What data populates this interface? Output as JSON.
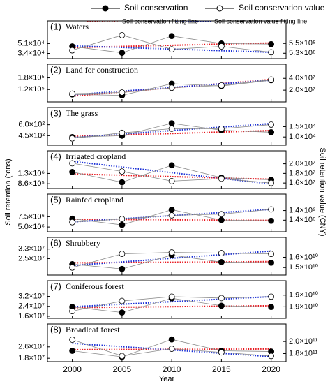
{
  "axes": {
    "ylabel": "Soil retention (tons)",
    "y2label": "Soil retention value (CNY)",
    "xlabel": "Year"
  },
  "chart_data": [
    {
      "type": "line",
      "number": "(1)",
      "title": "Waters",
      "x": [
        2000,
        2005,
        2010,
        2015,
        2020
      ],
      "xlim": [
        1997.5,
        2021.5
      ],
      "xticks": [
        2000,
        2005,
        2010,
        2015,
        2020
      ],
      "ylim": [
        25000,
        90000
      ],
      "yticks": [
        {
          "value": 34000,
          "label": "3.4×10⁴"
        },
        {
          "value": 51000,
          "label": "5.1×10⁴"
        }
      ],
      "y2lim": [
        519000000,
        596000000
      ],
      "y2ticks": [
        {
          "value": 530000000,
          "label": "5.3×10⁸"
        },
        {
          "value": 550000000,
          "label": "5.5×10⁸"
        }
      ],
      "series": [
        {
          "name": "Soil conservation",
          "color": "#000000",
          "marker": "filled",
          "line": "solid",
          "values": [
            46000,
            35000,
            64000,
            51000,
            50000
          ]
        },
        {
          "name": "Soil conservation value",
          "color": "#000000",
          "marker": "open",
          "line": "solid",
          "axis": "y2",
          "values": [
            536000000,
            567000000,
            538000000,
            544000000,
            532000000
          ]
        },
        {
          "name": "Soil conservation fitting line",
          "color": "#e8141b",
          "marker": "none",
          "line": "dotted",
          "values": [
            44000,
            46000,
            48000,
            50000,
            52000
          ]
        },
        {
          "name": "Soil conservation value fitting line",
          "color": "#1a2fd6",
          "marker": "none",
          "line": "dotted",
          "axis": "y2",
          "values": [
            545000000,
            541750000,
            538500000,
            535250000,
            532000000
          ]
        }
      ]
    },
    {
      "type": "line",
      "number": "(2)",
      "title": "Land for construction",
      "x": [
        2000,
        2005,
        2010,
        2015,
        2020
      ],
      "xlim": [
        1997.5,
        2021.5
      ],
      "xticks": [
        2000,
        2005,
        2010,
        2015,
        2020
      ],
      "ylim": [
        56500,
        250000
      ],
      "yticks": [
        {
          "value": 120000,
          "label": "1.2×10⁵"
        },
        {
          "value": 180000,
          "label": "1.8×10⁵"
        }
      ],
      "y2lim": [
        0,
        64000000
      ],
      "y2ticks": [
        {
          "value": 20000000,
          "label": "2.0×10⁷"
        },
        {
          "value": 40000000,
          "label": "4.0×10⁷"
        }
      ],
      "series": [
        {
          "color": "#000000",
          "marker": "filled",
          "line": "solid",
          "values": [
            95000,
            90000,
            150000,
            138000,
            168000
          ]
        },
        {
          "color": "#000000",
          "marker": "open",
          "line": "solid",
          "axis": "y2",
          "values": [
            14000000,
            16000000,
            24000000,
            28000000,
            38000000
          ]
        },
        {
          "color": "#e8141b",
          "marker": "none",
          "line": "dotted",
          "values": [
            86000,
            107500,
            129000,
            150500,
            172000
          ]
        },
        {
          "color": "#1a2fd6",
          "marker": "none",
          "line": "dotted",
          "axis": "y2",
          "values": [
            12000000,
            18250000,
            24500000,
            30750000,
            37000000
          ]
        }
      ]
    },
    {
      "type": "line",
      "number": "(3)",
      "title": "The grass",
      "x": [
        2000,
        2005,
        2010,
        2015,
        2020
      ],
      "xlim": [
        1997.5,
        2021.5
      ],
      "xticks": [
        2000,
        2005,
        2010,
        2015,
        2020
      ],
      "ylim": [
        320,
        835
      ],
      "yticks": [
        {
          "value": 450,
          "label": "4.5×10²"
        },
        {
          "value": 600,
          "label": "6.0×10²"
        }
      ],
      "y2lim": [
        6000,
        24300
      ],
      "y2ticks": [
        {
          "value": 10000,
          "label": "1.0×10⁴"
        },
        {
          "value": 15000,
          "label": "1.5×10⁴"
        }
      ],
      "series": [
        {
          "color": "#000000",
          "marker": "filled",
          "line": "solid",
          "values": [
            431,
            450,
            619,
            525,
            497
          ]
        },
        {
          "color": "#000000",
          "marker": "open",
          "line": "solid",
          "axis": "y2",
          "values": [
            9300,
            12000,
            14000,
            14000,
            16000
          ]
        },
        {
          "color": "#e8141b",
          "marker": "none",
          "line": "dotted",
          "values": [
            440,
            460,
            480,
            500,
            520
          ]
        },
        {
          "color": "#1a2fd6",
          "marker": "none",
          "line": "dotted",
          "axis": "y2",
          "values": [
            9700,
            11400,
            13100,
            14800,
            16500
          ]
        }
      ]
    },
    {
      "type": "line",
      "number": "(4)",
      "title": "Irrigated cropland",
      "x": [
        2000,
        2005,
        2010,
        2015,
        2020
      ],
      "xlim": [
        1997.5,
        2021.5
      ],
      "xticks": [
        2000,
        2005,
        2010,
        2015,
        2020
      ],
      "ylim": [
        655000,
        2270000
      ],
      "yticks": [
        {
          "value": 860000,
          "label": "8.6×10⁵"
        },
        {
          "value": 1300000,
          "label": "1.3×10⁶"
        }
      ],
      "y2lim": [
        14860000,
        22700000
      ],
      "y2ticks": [
        {
          "value": 16000000,
          "label": "1.6×10⁷"
        },
        {
          "value": 18000000,
          "label": "1.8×10⁷"
        },
        {
          "value": 20000000,
          "label": "2.0×10⁷"
        }
      ],
      "series": [
        {
          "color": "#000000",
          "marker": "filled",
          "line": "solid",
          "values": [
            1360000,
            920000,
            1650000,
            1120000,
            1030000
          ]
        },
        {
          "color": "#000000",
          "marker": "open",
          "line": "solid",
          "axis": "y2",
          "values": [
            20100000,
            18400000,
            16400000,
            16900000,
            16000000
          ]
        },
        {
          "color": "#e8141b",
          "marker": "none",
          "line": "dotted",
          "values": [
            1280000,
            1222500,
            1165000,
            1107500,
            1050000
          ]
        },
        {
          "color": "#1a2fd6",
          "marker": "none",
          "line": "dotted",
          "axis": "y2",
          "values": [
            20500000,
            19325000,
            18150000,
            16975000,
            15800000
          ]
        }
      ]
    },
    {
      "type": "line",
      "number": "(5)",
      "title": "Rainfed cropland",
      "x": [
        2000,
        2005,
        2010,
        2015,
        2020
      ],
      "xlim": [
        1997.5,
        2021.5
      ],
      "xticks": [
        2000,
        2005,
        2010,
        2015,
        2020
      ],
      "ylim": [
        3830000,
        13000000
      ],
      "yticks": [
        {
          "value": 5000000,
          "label": "5.0×10⁶"
        },
        {
          "value": 7500000,
          "label": "7.5×10⁶"
        }
      ],
      "y2lim": [
        1263000000,
        1577000000
      ],
      "y2ticks": [
        {
          "value": 1360000000,
          "label": "1.4×10⁹"
        },
        {
          "value": 1440000000,
          "label": "1.4×10⁹"
        }
      ],
      "series": [
        {
          "color": "#000000",
          "marker": "filled",
          "line": "solid",
          "values": [
            7000000,
            5500000,
            9200000,
            6700000,
            6500000
          ]
        },
        {
          "color": "#000000",
          "marker": "open",
          "line": "solid",
          "axis": "y2",
          "values": [
            1343000000,
            1370000000,
            1400000000,
            1410000000,
            1450000000
          ]
        },
        {
          "color": "#e8141b",
          "marker": "none",
          "line": "dotted",
          "values": [
            6900000,
            6825000,
            6750000,
            6675000,
            6600000
          ]
        },
        {
          "color": "#1a2fd6",
          "marker": "none",
          "line": "dotted",
          "axis": "y2",
          "values": [
            1345000000,
            1371250000,
            1397500000,
            1423750000,
            1450000000
          ]
        }
      ]
    },
    {
      "type": "line",
      "number": "(6)",
      "title": "Shrubbery",
      "x": [
        2000,
        2005,
        2010,
        2015,
        2020
      ],
      "xlim": [
        1997.5,
        2021.5
      ],
      "xticks": [
        2000,
        2005,
        2010,
        2015,
        2020
      ],
      "ylim": [
        11300000,
        42700000
      ],
      "yticks": [
        {
          "value": 25000000,
          "label": "2.5×10⁷"
        },
        {
          "value": 33000000,
          "label": "3.3×10⁷"
        }
      ],
      "y2lim": [
        14270000000,
        17930000000
      ],
      "y2ticks": [
        {
          "value": 15000000000,
          "label": "1.5×10¹⁰"
        },
        {
          "value": 16000000000,
          "label": "1.6×10¹⁰"
        }
      ],
      "series": [
        {
          "color": "#000000",
          "marker": "filled",
          "line": "solid",
          "values": [
            20400000,
            16400000,
            27900000,
            22100000,
            21600000
          ]
        },
        {
          "color": "#000000",
          "marker": "open",
          "line": "solid",
          "axis": "y2",
          "values": [
            15000000000,
            16330000000,
            16470000000,
            16400000000,
            16330000000
          ]
        },
        {
          "color": "#e8141b",
          "marker": "none",
          "line": "dotted",
          "values": [
            21500000,
            21750000,
            22000000,
            22250000,
            22500000
          ]
        },
        {
          "color": "#1a2fd6",
          "marker": "none",
          "line": "dotted",
          "axis": "y2",
          "values": [
            15200000000,
            15550000000,
            15900000000,
            16250000000,
            16600000000
          ]
        }
      ]
    },
    {
      "type": "line",
      "number": "(7)",
      "title": "Coniferous forest",
      "x": [
        2000,
        2005,
        2010,
        2015,
        2020
      ],
      "xlim": [
        1997.5,
        2021.5
      ],
      "xticks": [
        2000,
        2005,
        2010,
        2015,
        2020
      ],
      "ylim": [
        14300000,
        44700000
      ],
      "yticks": [
        {
          "value": 16000000,
          "label": "1.6×10⁷"
        },
        {
          "value": 24000000,
          "label": "2.4×10⁷"
        },
        {
          "value": 32000000,
          "label": "3.2×10⁷"
        }
      ],
      "y2lim": [
        17800000000,
        20400000000
      ],
      "y2ticks": [
        {
          "value": 18600000000,
          "label": "1.9×10¹⁰"
        },
        {
          "value": 19400000000,
          "label": "1.9×10¹⁰"
        }
      ],
      "series": [
        {
          "color": "#000000",
          "marker": "filled",
          "line": "solid",
          "values": [
            23500000,
            19000000,
            30500000,
            24500000,
            23500000
          ]
        },
        {
          "color": "#000000",
          "marker": "open",
          "line": "solid",
          "axis": "y2",
          "values": [
            18300000000,
            19000000000,
            19300000000,
            19200000000,
            19300000000
          ]
        },
        {
          "color": "#e8141b",
          "marker": "none",
          "line": "dotted",
          "values": [
            23000000,
            23375000,
            23750000,
            24125000,
            24500000
          ]
        },
        {
          "color": "#1a2fd6",
          "marker": "none",
          "line": "dotted",
          "axis": "y2",
          "values": [
            18600000000,
            18775000000,
            18950000000,
            19125000000,
            19300000000
          ]
        }
      ]
    },
    {
      "type": "line",
      "number": "(8)",
      "title": "Broadleaf forest",
      "x": [
        2000,
        2005,
        2010,
        2015,
        2020
      ],
      "xlim": [
        1997.5,
        2021.5
      ],
      "xticks": [
        2000,
        2005,
        2010,
        2015,
        2020
      ],
      "ylim": [
        15650000,
        42000000
      ],
      "yticks": [
        {
          "value": 18000000,
          "label": "1.8×10⁷"
        },
        {
          "value": 26000000,
          "label": "2.6×10⁷"
        }
      ],
      "y2lim": [
        166700000000,
        229000000000
      ],
      "y2ticks": [
        {
          "value": 180000000000,
          "label": "1.8×10¹¹"
        },
        {
          "value": 200000000000,
          "label": "2.0×10¹¹"
        }
      ],
      "series": [
        {
          "color": "#000000",
          "marker": "filled",
          "line": "solid",
          "values": [
            23200000,
            19000000,
            31200000,
            23200000,
            22700000
          ]
        },
        {
          "color": "#000000",
          "marker": "open",
          "line": "solid",
          "axis": "y2",
          "values": [
            203000000000,
            176000000000,
            188000000000,
            182000000000,
            176000000000
          ]
        },
        {
          "color": "#e8141b",
          "marker": "none",
          "line": "dotted",
          "values": [
            24000000,
            24125000,
            24250000,
            24375000,
            24500000
          ]
        },
        {
          "color": "#1a2fd6",
          "marker": "none",
          "line": "dotted",
          "axis": "y2",
          "values": [
            197000000000,
            191500000000,
            186000000000,
            180500000000,
            175000000000
          ]
        }
      ]
    }
  ]
}
